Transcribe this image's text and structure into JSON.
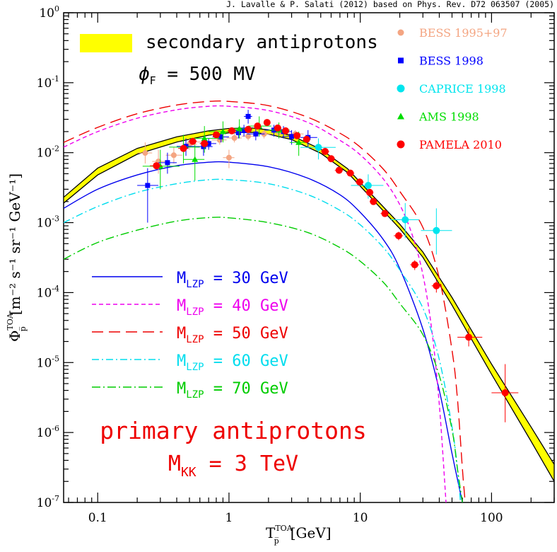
{
  "chart_data": {
    "type": "line",
    "title": "J. Lavalle & P. Salati (2012) based on Phys. Rev. D72 063507 (2005)",
    "xlabel": {
      "base": "T",
      "sup": "TOA",
      "sub": "p̅",
      "unit": "[GeV]"
    },
    "ylabel": {
      "base": "Φ",
      "sup": "TOA",
      "sub": "p̅",
      "unit": "[m⁻² s⁻¹ sr⁻¹ GeV⁻¹]"
    },
    "xscale": "log",
    "yscale": "log",
    "xlim": [
      0.055,
      300
    ],
    "ylim": [
      1e-07,
      1
    ],
    "x_tick_labels": [
      {
        "v": 0.1,
        "label": "0.1"
      },
      {
        "v": 1,
        "label": "1"
      },
      {
        "v": 10,
        "label": "10"
      },
      {
        "v": 100,
        "label": "100"
      }
    ],
    "y_tick_labels": [
      {
        "v": 1,
        "base": "10",
        "exp": "0"
      },
      {
        "v": 0.1,
        "base": "10",
        "exp": "-1"
      },
      {
        "v": 0.01,
        "base": "10",
        "exp": "-2"
      },
      {
        "v": 0.001,
        "base": "10",
        "exp": "-3"
      },
      {
        "v": 0.0001,
        "base": "10",
        "exp": "-4"
      },
      {
        "v": 1e-05,
        "base": "10",
        "exp": "-5"
      },
      {
        "v": 1e-06,
        "base": "10",
        "exp": "-6"
      },
      {
        "v": 1e-07,
        "base": "10",
        "exp": "-7"
      }
    ],
    "annotations": {
      "secondary_label": "secondary antiprotons",
      "phi_label": "ϕ",
      "phi_sub": "F",
      "phi_value": " = 500 MV",
      "primary_label": "primary antiprotons",
      "mkk_base": "M",
      "mkk_sub": "KK",
      "mkk_value": " = 3 TeV"
    },
    "colors": {
      "band": "#ffff00",
      "bess9597": "#f4a582",
      "bess98": "#0000ff",
      "caprice": "#00e5ee",
      "ams": "#00dd00",
      "pamela": "#ff0000",
      "m30": "#0000ee",
      "m40": "#ee00ee",
      "m50": "#ee0000",
      "m60": "#00ddee",
      "m70": "#00cc00",
      "text_red": "#ee0000"
    },
    "band": {
      "name": "secondary antiprotons",
      "upper": [
        [
          0.055,
          0.0023
        ],
        [
          0.1,
          0.006
        ],
        [
          0.2,
          0.0115
        ],
        [
          0.4,
          0.0168
        ],
        [
          0.7,
          0.0205
        ],
        [
          1,
          0.0222
        ],
        [
          1.5,
          0.0225
        ],
        [
          2,
          0.0212
        ],
        [
          3,
          0.0175
        ],
        [
          5,
          0.0112
        ],
        [
          8,
          0.0059
        ],
        [
          12,
          0.0026
        ],
        [
          20,
          0.00095
        ],
        [
          30,
          0.00038
        ],
        [
          50,
          8.5e-05
        ],
        [
          100,
          9.5e-06
        ],
        [
          200,
          1.2e-06
        ],
        [
          300,
          3.5e-07
        ]
      ],
      "lower": [
        [
          0.055,
          0.0019
        ],
        [
          0.1,
          0.0048
        ],
        [
          0.2,
          0.0095
        ],
        [
          0.4,
          0.0142
        ],
        [
          0.7,
          0.0178
        ],
        [
          1,
          0.0192
        ],
        [
          1.5,
          0.0195
        ],
        [
          2,
          0.0184
        ],
        [
          3,
          0.0154
        ],
        [
          5,
          0.0098
        ],
        [
          8,
          0.0052
        ],
        [
          12,
          0.0023
        ],
        [
          20,
          0.00082
        ],
        [
          30,
          0.00032
        ],
        [
          50,
          6.6e-05
        ],
        [
          100,
          6.8e-06
        ],
        [
          200,
          7.5e-07
        ],
        [
          300,
          2e-07
        ]
      ]
    },
    "series": [
      {
        "key": "m30",
        "name_base": "M",
        "name_sub": "LZP",
        "name_value": " = 30 GeV",
        "dash": "",
        "points": [
          [
            0.055,
            0.0016
          ],
          [
            0.1,
            0.003
          ],
          [
            0.2,
            0.0048
          ],
          [
            0.4,
            0.0065
          ],
          [
            0.7,
            0.0073
          ],
          [
            1,
            0.0073
          ],
          [
            2,
            0.0063
          ],
          [
            4,
            0.0043
          ],
          [
            7,
            0.0025
          ],
          [
            10,
            0.0014
          ],
          [
            15,
            0.00057
          ],
          [
            20,
            0.00022
          ],
          [
            30,
            3e-05
          ],
          [
            40,
            4e-06
          ],
          [
            50,
            5e-07
          ],
          [
            60,
            1e-07
          ]
        ]
      },
      {
        "key": "m40",
        "name_base": "M",
        "name_sub": "LZP",
        "name_value": " = 40 GeV",
        "dash": "6,4",
        "points": [
          [
            0.055,
            0.012
          ],
          [
            0.1,
            0.02
          ],
          [
            0.2,
            0.031
          ],
          [
            0.4,
            0.041
          ],
          [
            0.7,
            0.046
          ],
          [
            1,
            0.046
          ],
          [
            2,
            0.04
          ],
          [
            4,
            0.027
          ],
          [
            7,
            0.015
          ],
          [
            10,
            0.0093
          ],
          [
            15,
            0.0042
          ],
          [
            20,
            0.0018
          ],
          [
            25,
            0.00065
          ],
          [
            30,
            0.00018
          ],
          [
            35,
            3e-05
          ],
          [
            40,
            2.5e-06
          ],
          [
            45,
            1e-07
          ]
        ]
      },
      {
        "key": "m50",
        "name_base": "M",
        "name_sub": "LZP",
        "name_value": " = 50 GeV",
        "dash": "16,8",
        "points": [
          [
            0.055,
            0.014
          ],
          [
            0.1,
            0.023
          ],
          [
            0.2,
            0.036
          ],
          [
            0.4,
            0.048
          ],
          [
            0.7,
            0.054
          ],
          [
            1,
            0.054
          ],
          [
            2,
            0.047
          ],
          [
            4,
            0.032
          ],
          [
            7,
            0.019
          ],
          [
            10,
            0.012
          ],
          [
            15,
            0.0058
          ],
          [
            20,
            0.0028
          ],
          [
            30,
            0.00085
          ],
          [
            40,
            0.00016
          ],
          [
            50,
            1.5e-05
          ],
          [
            55,
            3e-06
          ],
          [
            60,
            3e-07
          ],
          [
            63,
            1e-07
          ]
        ]
      },
      {
        "key": "m60",
        "name_base": "M",
        "name_sub": "LZP",
        "name_value": " = 60 GeV",
        "dash": "10,4,2,4",
        "points": [
          [
            0.055,
            0.001
          ],
          [
            0.1,
            0.0017
          ],
          [
            0.2,
            0.0027
          ],
          [
            0.4,
            0.0036
          ],
          [
            0.7,
            0.0041
          ],
          [
            1,
            0.0041
          ],
          [
            2,
            0.0036
          ],
          [
            4,
            0.0025
          ],
          [
            7,
            0.0015
          ],
          [
            10,
            0.00093
          ],
          [
            15,
            0.00044
          ],
          [
            20,
            0.00021
          ],
          [
            30,
            6e-05
          ],
          [
            40,
            1.1e-05
          ],
          [
            50,
            1.2e-06
          ],
          [
            55,
            3e-07
          ],
          [
            58,
            1e-07
          ]
        ]
      },
      {
        "key": "m70",
        "name_base": "M",
        "name_sub": "LZP",
        "name_value": " = 70 GeV",
        "dash": "12,4,2,4",
        "points": [
          [
            0.055,
            0.0003
          ],
          [
            0.1,
            0.00052
          ],
          [
            0.2,
            0.00078
          ],
          [
            0.4,
            0.00105
          ],
          [
            0.7,
            0.00118
          ],
          [
            1,
            0.00117
          ],
          [
            2,
            0.001
          ],
          [
            4,
            0.00072
          ],
          [
            7,
            0.00044
          ],
          [
            10,
            0.00028
          ],
          [
            15,
            0.00014
          ],
          [
            20,
            7e-05
          ],
          [
            30,
            2.5e-05
          ],
          [
            40,
            6.5e-06
          ],
          [
            50,
            1.1e-06
          ],
          [
            55,
            3e-07
          ],
          [
            60,
            1e-07
          ]
        ]
      }
    ],
    "datasets": [
      {
        "key": "bess9597",
        "name": "BESS 1995+97",
        "marker": "circle-small",
        "points": [
          [
            0.23,
            0.0099,
            0.007,
            0.014,
            0.2,
            0.26
          ],
          [
            0.29,
            0.0075,
            0.005,
            0.011,
            0.26,
            0.33
          ],
          [
            0.38,
            0.0092,
            0.007,
            0.012,
            0.33,
            0.44
          ],
          [
            0.5,
            0.0132,
            0.011,
            0.016,
            0.44,
            0.57
          ],
          [
            0.65,
            0.0142,
            0.012,
            0.017,
            0.57,
            0.74
          ],
          [
            0.85,
            0.0152,
            0.013,
            0.018,
            0.74,
            0.96
          ],
          [
            1.1,
            0.0162,
            0.014,
            0.019,
            0.96,
            1.25
          ],
          [
            1.4,
            0.0172,
            0.015,
            0.02,
            1.25,
            1.6
          ],
          [
            1.85,
            0.0185,
            0.016,
            0.021,
            1.6,
            2.1
          ],
          [
            2.4,
            0.0195,
            0.017,
            0.022,
            2.1,
            2.8
          ],
          [
            3.2,
            0.0185,
            0.016,
            0.021,
            2.8,
            3.7
          ],
          [
            1.0,
            0.0085,
            0.006,
            0.011,
            0.9,
            1.1
          ]
        ]
      },
      {
        "key": "bess98",
        "name": "BESS 1998",
        "marker": "square",
        "points": [
          [
            0.24,
            0.0034,
            0.001,
            0.006,
            0.2,
            0.29
          ],
          [
            0.34,
            0.0072,
            0.005,
            0.01,
            0.29,
            0.4
          ],
          [
            0.47,
            0.0123,
            0.009,
            0.016,
            0.4,
            0.55
          ],
          [
            0.64,
            0.0122,
            0.009,
            0.016,
            0.55,
            0.75
          ],
          [
            0.87,
            0.0168,
            0.014,
            0.02,
            0.75,
            1
          ],
          [
            1.18,
            0.0193,
            0.016,
            0.023,
            1,
            1.37
          ],
          [
            1.4,
            0.033,
            0.026,
            0.041,
            1.3,
            1.5
          ],
          [
            1.6,
            0.0185,
            0.015,
            0.022,
            1.37,
            1.87
          ],
          [
            2.2,
            0.021,
            0.017,
            0.025,
            1.87,
            2.55
          ],
          [
            3.0,
            0.017,
            0.013,
            0.021,
            2.55,
            3.5
          ],
          [
            4.0,
            0.0165,
            0.012,
            0.021,
            3.5,
            4.7
          ],
          [
            0.7,
            0.0135,
            0.011,
            0.016,
            0.6,
            0.8
          ],
          [
            1.3,
            0.021,
            0.017,
            0.025,
            1.1,
            1.5
          ],
          [
            2.6,
            0.02,
            0.016,
            0.024,
            2.3,
            3.0
          ]
        ]
      },
      {
        "key": "caprice",
        "name": "CAPRICE 1998",
        "marker": "circle",
        "points": [
          [
            4.8,
            0.0119,
            0.008,
            0.016,
            3.5,
            6.5
          ],
          [
            11.5,
            0.0034,
            0.0022,
            0.0049,
            8.5,
            15
          ],
          [
            22,
            0.0011,
            0.0006,
            0.0019,
            17,
            28
          ],
          [
            38,
            0.00077,
            0.00035,
            0.0016,
            29,
            50
          ]
        ]
      },
      {
        "key": "ams",
        "name": "AMS 1998",
        "marker": "triangle",
        "points": [
          [
            0.3,
            0.0064,
            0.003,
            0.011,
            0.22,
            0.42
          ],
          [
            0.45,
            0.012,
            0.007,
            0.018,
            0.35,
            0.6
          ],
          [
            0.65,
            0.016,
            0.01,
            0.024,
            0.5,
            0.85
          ],
          [
            0.9,
            0.02,
            0.014,
            0.028,
            0.7,
            1.1
          ],
          [
            1.2,
            0.022,
            0.016,
            0.03,
            1.0,
            1.5
          ],
          [
            1.7,
            0.024,
            0.017,
            0.033,
            1.4,
            2.1
          ],
          [
            2.4,
            0.021,
            0.016,
            0.027,
            2.0,
            2.9
          ],
          [
            3.4,
            0.014,
            0.009,
            0.02,
            2.9,
            4.0
          ],
          [
            0.55,
            0.008,
            0.004,
            0.013,
            0.45,
            0.65
          ]
        ]
      },
      {
        "key": "pamela",
        "name": "PAMELA 2010",
        "marker": "circle",
        "points": [
          [
            0.28,
            0.0065,
            0.0062,
            0.0068,
            0.25,
            0.31
          ],
          [
            0.45,
            0.0115,
            0.0111,
            0.012,
            0.41,
            0.49
          ],
          [
            0.53,
            0.0145,
            0.014,
            0.015,
            0.49,
            0.57
          ],
          [
            0.65,
            0.0135,
            0.013,
            0.014,
            0.6,
            0.7
          ],
          [
            0.8,
            0.018,
            0.0174,
            0.0186,
            0.74,
            0.86
          ],
          [
            1.05,
            0.0205,
            0.0198,
            0.0212,
            0.97,
            1.13
          ],
          [
            1.4,
            0.0215,
            0.0208,
            0.0222,
            1.3,
            1.5
          ],
          [
            1.65,
            0.024,
            0.0232,
            0.0248,
            1.55,
            1.75
          ],
          [
            1.95,
            0.027,
            0.026,
            0.028,
            1.85,
            2.05
          ],
          [
            2.35,
            0.0225,
            0.0218,
            0.0232,
            2.2,
            2.5
          ],
          [
            2.7,
            0.0205,
            0.0198,
            0.0212,
            2.55,
            2.85
          ],
          [
            3.3,
            0.0175,
            0.0169,
            0.0181,
            3.1,
            3.5
          ],
          [
            3.9,
            0.0155,
            0.015,
            0.016,
            3.7,
            4.1
          ],
          [
            5.4,
            0.0104,
            0.0099,
            0.0109,
            5.0,
            5.8
          ],
          [
            6.0,
            0.0082,
            0.0078,
            0.0086,
            5.6,
            6.4
          ],
          [
            6.9,
            0.0056,
            0.0053,
            0.0059,
            6.4,
            7.4
          ],
          [
            8.4,
            0.0051,
            0.0048,
            0.0054,
            7.8,
            9.0
          ],
          [
            9.9,
            0.0038,
            0.0035,
            0.0041,
            9.2,
            10.6
          ],
          [
            11.8,
            0.0027,
            0.0025,
            0.0029,
            11,
            12.6
          ],
          [
            12.6,
            0.002,
            0.0018,
            0.0022,
            11.8,
            13.4
          ],
          [
            15.4,
            0.00135,
            0.00122,
            0.00148,
            14.3,
            16.5
          ],
          [
            19.6,
            0.00065,
            0.00056,
            0.00074,
            18,
            21.2
          ],
          [
            26,
            0.00025,
            0.00021,
            0.00029,
            24,
            28
          ],
          [
            38,
            0.000125,
            0.0001,
            0.00015,
            35,
            41
          ],
          [
            67,
            2.3e-05,
            1.7e-05,
            3.1e-05,
            55,
            85
          ],
          [
            127,
            3.7e-06,
            1.4e-06,
            9.5e-06,
            100,
            160
          ]
        ]
      }
    ]
  }
}
